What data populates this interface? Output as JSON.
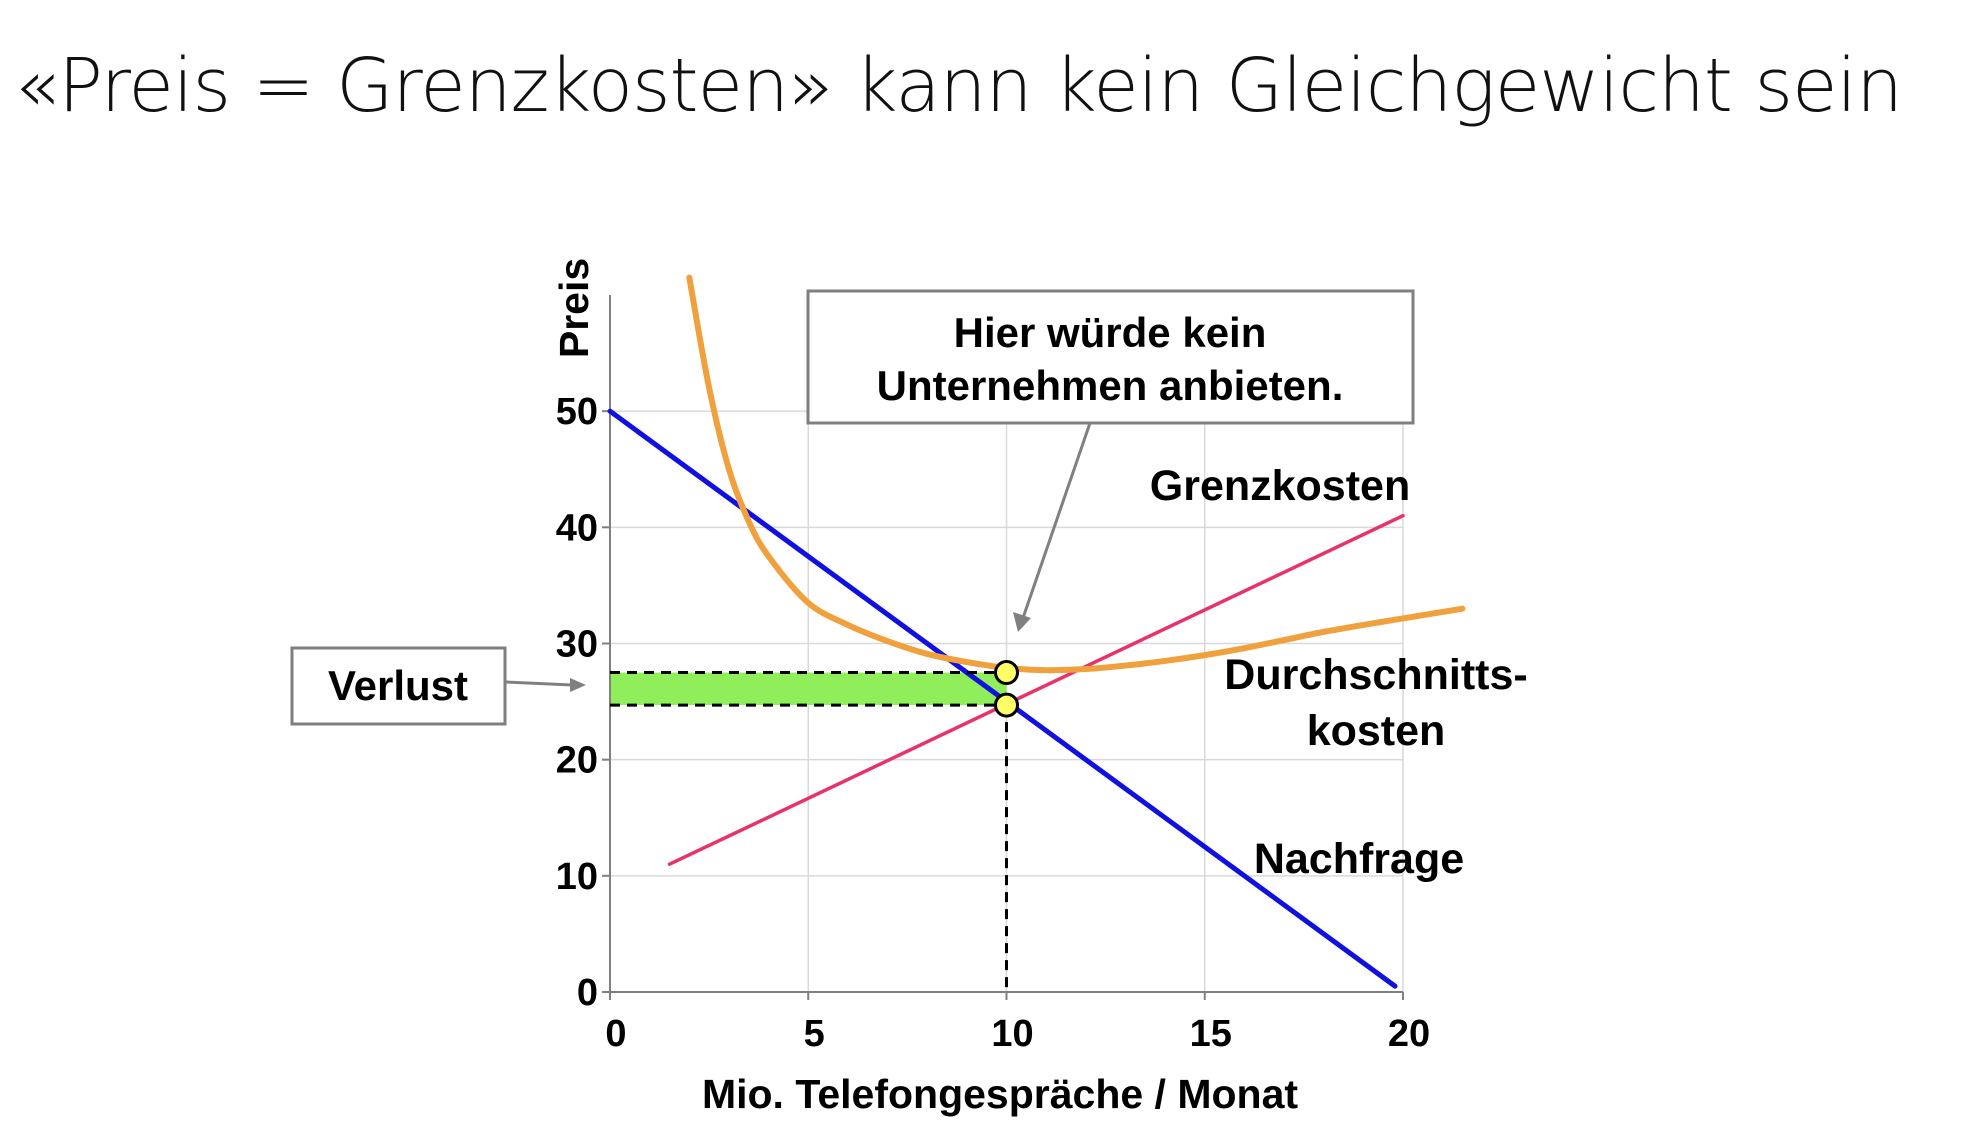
{
  "slide": {
    "title": "«Preis = Grenzkosten» kann kein Gleichgewicht sein"
  },
  "chart_data": {
    "type": "line",
    "title": "",
    "xlabel": "Mio. Telefongespräche / Monat",
    "ylabel": "Preis",
    "xlim": [
      0,
      20
    ],
    "ylim": [
      0,
      60
    ],
    "xticks": [
      0,
      5,
      10,
      15,
      20
    ],
    "yticks": [
      0,
      10,
      20,
      30,
      40,
      50
    ],
    "grid": true,
    "series": [
      {
        "name": "Nachfrage",
        "color": "#1010e0",
        "x": [
          0,
          19.8
        ],
        "y": [
          50,
          0.5
        ]
      },
      {
        "name": "Grenzkosten",
        "color": "#e8336a",
        "x": [
          1.5,
          20
        ],
        "y": [
          11,
          41
        ]
      },
      {
        "name": "Durchschnitts-kosten",
        "color": "#f0a03c",
        "x": [
          2.0,
          2.5,
          3.0,
          3.5,
          4.0,
          5.0,
          6.0,
          7.0,
          8.0,
          9.0,
          10.0,
          11.0,
          12.0,
          13.0,
          14.0,
          15.0,
          16.0,
          17.0,
          18.0,
          19.0,
          21.5
        ],
        "y": [
          61.5,
          52,
          45,
          40.5,
          37.5,
          33.5,
          31.6,
          30.2,
          29.1,
          28.4,
          27.9,
          27.7,
          27.8,
          28.1,
          28.5,
          29.0,
          29.6,
          30.3,
          31.0,
          31.6,
          33.0
        ]
      }
    ],
    "points": [
      {
        "label": "",
        "x": 10,
        "y": 27.5
      },
      {
        "label": "",
        "x": 10,
        "y": 24.7
      }
    ],
    "loss_area": {
      "label": "Verlust",
      "x": [
        0,
        10
      ],
      "y": [
        24.7,
        27.5
      ],
      "color": "#90ee5a"
    },
    "annotations": {
      "callout_line1": "Hier würde kein",
      "callout_line2": "Unternehmen anbieten.",
      "verlust": "Verlust",
      "grenzkosten": "Grenzkosten",
      "durchschnitts_line1": "Durchschnitts-",
      "durchschnitts_line2": "kosten",
      "nachfrage": "Nachfrage"
    }
  }
}
